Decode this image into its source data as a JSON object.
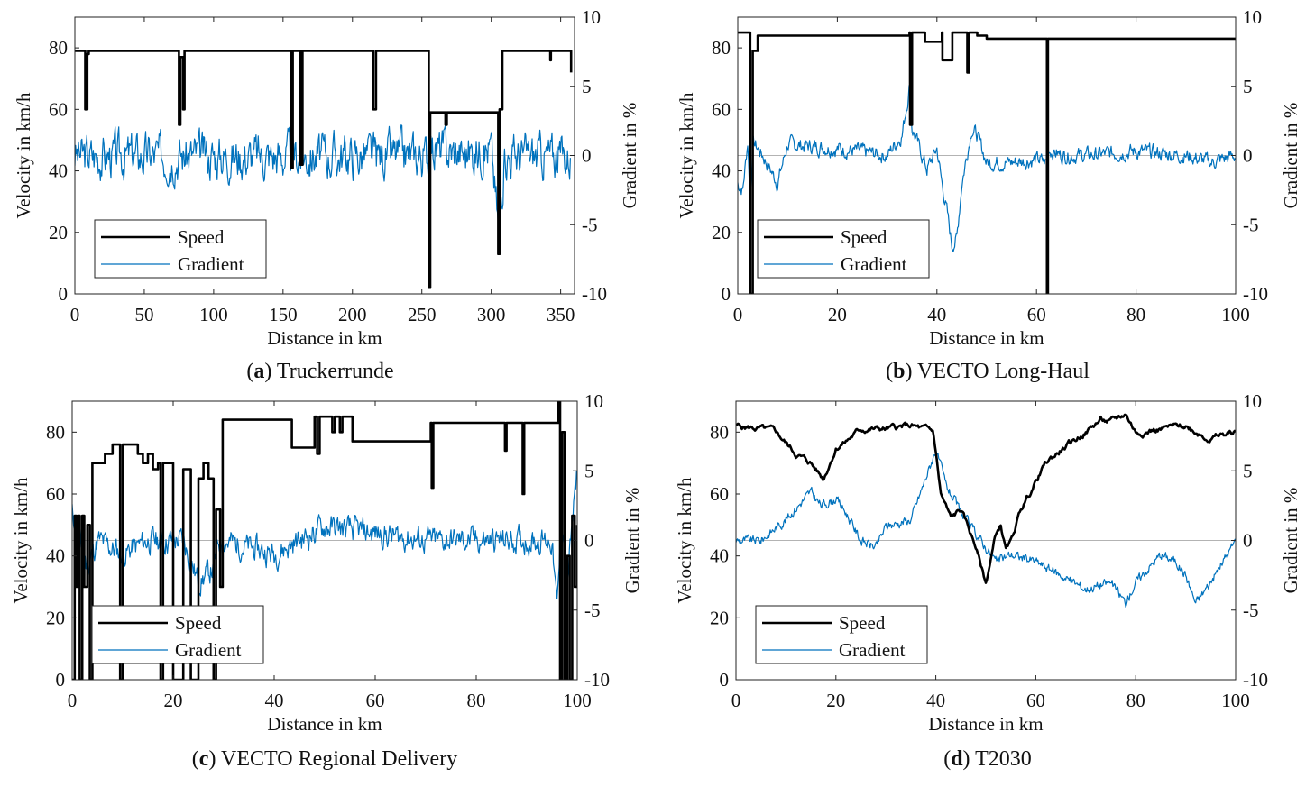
{
  "colors": {
    "speed": "#000000",
    "gradient": "#0072BD",
    "axis": "#222222",
    "zero_line": "#9a9a9a"
  },
  "chart_data": [
    {
      "id": "a",
      "type": "line",
      "caption_letter": "a",
      "caption_text": "Truckerrunde",
      "caption_paren_open": "(",
      "caption_paren_close": ")",
      "xlabel": "Distance in km",
      "ylabel_left": "Velocity in km/h",
      "ylabel_right": "Gradient in %",
      "xlim": [
        0,
        360
      ],
      "ylim_left": [
        0,
        90
      ],
      "ylim_right": [
        -10,
        10
      ],
      "x_ticks": [
        0,
        50,
        100,
        150,
        200,
        250,
        300,
        350
      ],
      "y_ticks_left": [
        0,
        20,
        40,
        60,
        80
      ],
      "y_ticks_right": [
        -10,
        -5,
        0,
        5,
        10
      ],
      "legend": {
        "position": "bottom-left",
        "entries": [
          "Speed",
          "Gradient"
        ]
      },
      "series": [
        {
          "name": "Speed",
          "axis": "left",
          "x": [
            0,
            7,
            7.5,
            9,
            10,
            74,
            75,
            76,
            78,
            79,
            155,
            155.5,
            157,
            162,
            162.5,
            164,
            214,
            215,
            217,
            219,
            254,
            255,
            256,
            266,
            267,
            268,
            304,
            305,
            306,
            308,
            342,
            342.5,
            343,
            357,
            357.5
          ],
          "y": [
            79,
            79,
            60,
            78,
            79,
            79,
            55,
            77,
            60,
            79,
            79,
            41,
            79,
            79,
            42,
            79,
            79,
            60,
            79,
            79,
            79,
            2,
            59,
            59,
            55,
            59,
            59,
            13,
            60,
            79,
            79,
            76,
            79,
            79,
            72
          ]
        },
        {
          "name": "Gradient",
          "axis": "right",
          "noise": 2.6,
          "seed": 3,
          "x": [
            0,
            50,
            100,
            150,
            200,
            230,
            255,
            256,
            280,
            300,
            305,
            310,
            340,
            357
          ],
          "y": [
            0,
            0,
            0,
            0,
            0,
            0,
            0,
            0.5,
            0.2,
            0.5,
            -5,
            0,
            0,
            0
          ]
        }
      ]
    },
    {
      "id": "b",
      "type": "line",
      "caption_letter": "b",
      "caption_text": "VECTO Long-Haul",
      "caption_paren_open": "(",
      "caption_paren_close": ")",
      "xlabel": "Distance in km",
      "ylabel_left": "Velocity in km/h",
      "ylabel_right": "Gradient in %",
      "xlim": [
        0,
        100
      ],
      "ylim_left": [
        0,
        90
      ],
      "ylim_right": [
        -10,
        10
      ],
      "x_ticks": [
        0,
        20,
        40,
        60,
        80,
        100
      ],
      "y_ticks_left": [
        0,
        20,
        40,
        60,
        80
      ],
      "y_ticks_right": [
        -10,
        -5,
        0,
        5,
        10
      ],
      "legend": {
        "position": "bottom-left",
        "entries": [
          "Speed",
          "Gradient"
        ]
      },
      "series": [
        {
          "name": "Speed",
          "axis": "left",
          "x": [
            0,
            2,
            2.5,
            3,
            3.5,
            4,
            30,
            34.5,
            34.6,
            35,
            37.5,
            37.6,
            41,
            41.1,
            43,
            43.1,
            46,
            46.1,
            46.5,
            48,
            48.1,
            50,
            62,
            62.1,
            62.3,
            100
          ],
          "y": [
            85,
            85,
            0,
            79,
            79,
            84,
            84,
            85,
            55,
            85,
            85,
            82,
            85,
            76,
            76,
            85,
            85,
            72,
            85,
            85,
            84,
            83,
            83,
            0,
            83,
            83
          ]
        },
        {
          "name": "Gradient",
          "axis": "right",
          "noise": 0.9,
          "seed": 7,
          "x": [
            0,
            1,
            2,
            2.5,
            3,
            5,
            8,
            10,
            20,
            30,
            33,
            34.5,
            35,
            36,
            38,
            40,
            41,
            42,
            43,
            44,
            45,
            47,
            48,
            50,
            55,
            60,
            62,
            62.2,
            65,
            70,
            80,
            90,
            95,
            100
          ],
          "y": [
            -2,
            -2.5,
            1,
            -3,
            1,
            0,
            -2,
            0.8,
            0.5,
            0,
            1.5,
            5,
            2,
            1,
            -1,
            0.5,
            -2,
            -4,
            -6.5,
            -6,
            -2,
            2,
            1.5,
            -0.5,
            -0.5,
            -0.3,
            -0.5,
            0.5,
            0,
            0,
            0.3,
            0,
            -0.5,
            0
          ]
        }
      ]
    },
    {
      "id": "c",
      "type": "line",
      "caption_letter": "c",
      "caption_text": "VECTO Regional Delivery",
      "caption_paren_open": "(",
      "caption_paren_close": ")",
      "xlabel": "Distance in km",
      "ylabel_left": "Velocity in km/h",
      "ylabel_right": "Gradient in %",
      "xlim": [
        0,
        100
      ],
      "ylim_left": [
        0,
        90
      ],
      "ylim_right": [
        -10,
        10
      ],
      "x_ticks": [
        0,
        20,
        40,
        60,
        80,
        100
      ],
      "y_ticks_left": [
        0,
        20,
        40,
        60,
        80
      ],
      "y_ticks_right": [
        -10,
        -5,
        0,
        5,
        10
      ],
      "legend": {
        "position": "bottom-left",
        "entries": [
          "Speed",
          "Gradient"
        ]
      },
      "series": [
        {
          "name": "Speed",
          "axis": "left",
          "x": [
            0,
            0.5,
            0.8,
            1.1,
            1.5,
            2,
            2.4,
            3,
            3.5,
            4,
            4.3,
            6,
            6.5,
            8,
            9,
            9.5,
            10,
            12,
            13,
            14,
            15,
            16,
            17,
            17.5,
            18,
            19.5,
            20,
            22,
            23,
            23.5,
            25,
            26,
            27,
            28,
            28.5,
            29.3,
            29.8,
            42,
            43,
            43.5,
            48,
            48.5,
            49,
            51,
            51.5,
            52,
            53,
            53.5,
            55,
            55.5,
            71,
            71.2,
            71.5,
            85.5,
            85.7,
            86,
            89,
            89.2,
            89.5,
            96,
            96.3,
            96.6,
            97,
            97.5,
            98,
            98.5,
            99,
            99.5,
            100
          ],
          "y": [
            0,
            53,
            30,
            53,
            0,
            53,
            30,
            50,
            0,
            70,
            70,
            70,
            73,
            76,
            76,
            0,
            76,
            76,
            73,
            70,
            73,
            68,
            70,
            0,
            70,
            70,
            0,
            68,
            68,
            0,
            65,
            70,
            65,
            0,
            55,
            30,
            84,
            84,
            84,
            75,
            85,
            73,
            85,
            85,
            80,
            85,
            80,
            85,
            85,
            77,
            83,
            62,
            83,
            83,
            74,
            83,
            83,
            60,
            83,
            83,
            90,
            0,
            80,
            0,
            40,
            0,
            53,
            30,
            50
          ]
        },
        {
          "name": "Gradient",
          "axis": "right",
          "noise": 1.5,
          "seed": 11,
          "x": [
            0,
            3,
            5,
            10,
            15,
            20,
            22,
            25,
            28,
            29,
            30,
            40,
            50,
            60,
            70,
            80,
            90,
            95,
            96,
            97,
            98,
            100
          ],
          "y": [
            2,
            -2,
            0,
            -1,
            0,
            0,
            0,
            -3,
            -2,
            0,
            0,
            -1,
            1,
            0.5,
            0,
            0,
            0,
            0,
            -5,
            2,
            -3,
            5
          ]
        }
      ]
    },
    {
      "id": "d",
      "type": "line",
      "caption_letter": "d",
      "caption_text": "T2030",
      "caption_paren_open": "(",
      "caption_paren_close": ")",
      "xlabel": "Distance in km",
      "ylabel_left": "Velocity in km/h",
      "ylabel_right": "Gradient in %",
      "xlim": [
        0,
        100
      ],
      "ylim_left": [
        0,
        90
      ],
      "ylim_right": [
        -10,
        10
      ],
      "x_ticks": [
        0,
        20,
        40,
        60,
        80,
        100
      ],
      "y_ticks_left": [
        0,
        20,
        40,
        60,
        80
      ],
      "y_ticks_right": [
        -10,
        -5,
        0,
        5,
        10
      ],
      "legend": {
        "position": "bottom-left",
        "entries": [
          "Speed",
          "Gradient"
        ]
      },
      "series": [
        {
          "name": "Speed",
          "axis": "left",
          "noise": 1.4,
          "seed": 5,
          "x": [
            0,
            5,
            8,
            12,
            15,
            17.5,
            20,
            22,
            25,
            30,
            35,
            39.5,
            41,
            43,
            45,
            48,
            50,
            52,
            53,
            54,
            55,
            57,
            60,
            62,
            65,
            70,
            73,
            75,
            78,
            80,
            85,
            90,
            95,
            100
          ],
          "y": [
            82,
            81,
            80,
            73,
            70,
            65,
            75,
            77,
            81,
            81,
            82,
            80,
            60,
            52,
            55,
            43,
            31,
            47,
            50,
            42,
            44,
            55,
            64,
            70,
            74,
            80,
            84,
            83,
            86,
            80,
            81,
            82,
            78,
            80
          ]
        },
        {
          "name": "Gradient",
          "axis": "right",
          "noise": 0.55,
          "seed": 9,
          "x": [
            0,
            5,
            10,
            15,
            17,
            20,
            22,
            25,
            28,
            30,
            35,
            40,
            42,
            45,
            50,
            52,
            55,
            60,
            65,
            70,
            75,
            78,
            80,
            85,
            88,
            90,
            92,
            95,
            100
          ],
          "y": [
            0,
            0,
            1.5,
            3.5,
            2.5,
            3,
            2,
            0,
            -0.5,
            1,
            1.5,
            6.5,
            4,
            2,
            -0.5,
            -1.5,
            -1,
            -1.5,
            -2.5,
            -3.5,
            -3,
            -4.5,
            -3,
            -1,
            -1.5,
            -2.5,
            -4.5,
            -3,
            0
          ]
        }
      ]
    }
  ]
}
